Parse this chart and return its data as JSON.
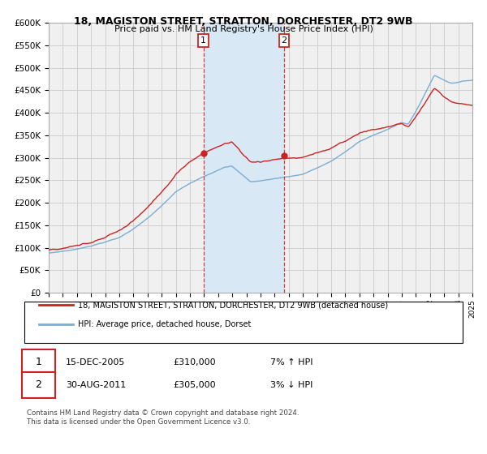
{
  "title": "18, MAGISTON STREET, STRATTON, DORCHESTER, DT2 9WB",
  "subtitle": "Price paid vs. HM Land Registry's House Price Index (HPI)",
  "ytick_values": [
    0,
    50000,
    100000,
    150000,
    200000,
    250000,
    300000,
    350000,
    400000,
    450000,
    500000,
    550000,
    600000
  ],
  "xlim_start": 1995,
  "xlim_end": 2025,
  "ylim_min": 0,
  "ylim_max": 600000,
  "hpi_color": "#7aadd4",
  "price_color": "#cc2222",
  "sale1_year": 2005.96,
  "sale1_price": 310000,
  "sale2_year": 2011.67,
  "sale2_price": 305000,
  "shade_color": "#d8e8f5",
  "legend_line1": "18, MAGISTON STREET, STRATTON, DORCHESTER, DT2 9WB (detached house)",
  "legend_line2": "HPI: Average price, detached house, Dorset",
  "note1_label": "1",
  "note1_date": "15-DEC-2005",
  "note1_price": "£310,000",
  "note1_hpi": "7% ↑ HPI",
  "note2_label": "2",
  "note2_date": "30-AUG-2011",
  "note2_price": "£305,000",
  "note2_hpi": "3% ↓ HPI",
  "footer": "Contains HM Land Registry data © Crown copyright and database right 2024.\nThis data is licensed under the Open Government Licence v3.0.",
  "bg_color": "#f0f0f0",
  "grid_color": "#d0d0d0"
}
